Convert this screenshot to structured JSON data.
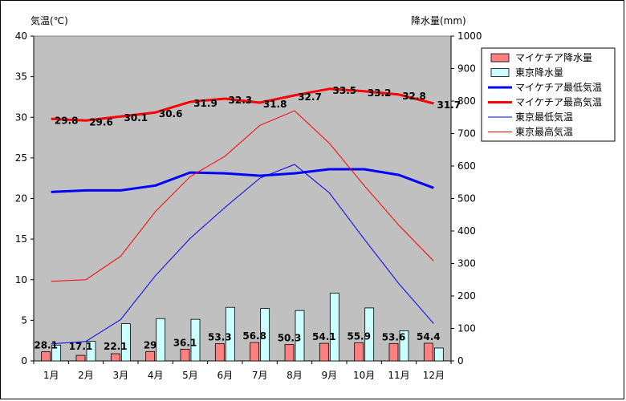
{
  "chart_data": {
    "type": "bar+line",
    "title": "",
    "ylabel_left": "気温(℃)",
    "ylabel_right": "降水量(mm)",
    "ylim_left": [
      0,
      40
    ],
    "ylim_right": [
      0,
      1000
    ],
    "yticks_left": [
      "0",
      "5",
      "10",
      "15",
      "20",
      "25",
      "30",
      "35",
      "40"
    ],
    "yticks_right": [
      "0",
      "100",
      "200",
      "300",
      "400",
      "500",
      "600",
      "700",
      "800",
      "900",
      "1000"
    ],
    "categories": [
      "1月",
      "2月",
      "3月",
      "4月",
      "5月",
      "6月",
      "7月",
      "8月",
      "9月",
      "10月",
      "11月",
      "12月"
    ],
    "grid": false,
    "legend_position": "right",
    "bar_series": [
      {
        "name": "マイケチア降水量",
        "color": "#ff8080",
        "values": [
          28.1,
          17.1,
          22.1,
          29,
          36.1,
          53.3,
          56.8,
          50.3,
          54.1,
          55.9,
          53.6,
          54.4
        ],
        "data_labels": [
          "28.1",
          "17.1",
          "22.1",
          "29",
          "36.1",
          "53.3",
          "56.8",
          "50.3",
          "54.1",
          "55.9",
          "53.6",
          "54.4"
        ]
      },
      {
        "name": "東京降水量",
        "color": "#ccffff",
        "values": [
          48.6,
          60.2,
          114.5,
          130.3,
          128,
          164.9,
          161.5,
          155.1,
          208.5,
          163.1,
          92.5,
          39.6
        ]
      }
    ],
    "line_series": [
      {
        "name": "マイケチア最低気温",
        "color": "#0000ff",
        "width": 3,
        "values": [
          20.8,
          21.0,
          21.0,
          21.6,
          23.2,
          23.1,
          22.8,
          23.1,
          23.6,
          23.6,
          22.9,
          21.3
        ]
      },
      {
        "name": "マイケチア最高気温",
        "color": "#ff0000",
        "width": 3,
        "values": [
          29.8,
          29.6,
          30.1,
          30.6,
          31.9,
          32.3,
          31.8,
          32.7,
          33.5,
          33.2,
          32.8,
          31.7
        ],
        "data_labels": [
          "29.8",
          "29.6",
          "30.1",
          "30.6",
          "31.9",
          "32.3",
          "31.8",
          "32.7",
          "33.5",
          "33.2",
          "32.8",
          "31.7"
        ]
      },
      {
        "name": "東京最低気温",
        "color": "#0000ff",
        "width": 1,
        "values": [
          2.1,
          2.4,
          5.1,
          10.5,
          15.1,
          18.9,
          22.5,
          24.2,
          20.7,
          15.0,
          9.5,
          4.6
        ]
      },
      {
        "name": "東京最高気温",
        "color": "#ff0000",
        "width": 1,
        "values": [
          9.8,
          10.0,
          12.9,
          18.4,
          22.7,
          25.2,
          29.0,
          30.8,
          26.8,
          21.6,
          16.7,
          12.3
        ]
      }
    ]
  }
}
